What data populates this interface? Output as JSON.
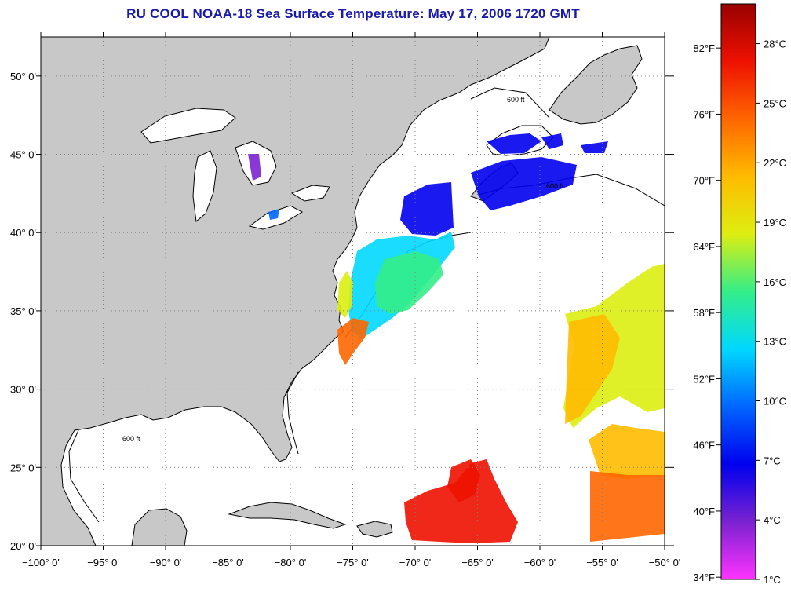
{
  "title": "RU COOL  NOAA-18  Sea Surface Temperature:  May 17, 2006 1720 GMT",
  "map": {
    "type": "sea-surface-temperature-map",
    "lon_range": [
      -100,
      -50
    ],
    "lat_range": [
      20,
      52.5
    ],
    "lon_ticks": [
      {
        "value": -100,
        "label": "−100° 0'"
      },
      {
        "value": -95,
        "label": "−95° 0'"
      },
      {
        "value": -90,
        "label": "−90° 0'"
      },
      {
        "value": -85,
        "label": "−85° 0'"
      },
      {
        "value": -80,
        "label": "−80° 0'"
      },
      {
        "value": -75,
        "label": "−75° 0'"
      },
      {
        "value": -70,
        "label": "−70° 0'"
      },
      {
        "value": -65,
        "label": "−65° 0'"
      },
      {
        "value": -60,
        "label": "−60° 0'"
      },
      {
        "value": -55,
        "label": "−55° 0'"
      },
      {
        "value": -50,
        "label": "−50° 0'"
      }
    ],
    "lat_ticks": [
      {
        "value": 20,
        "label": "20° 0'"
      },
      {
        "value": 25,
        "label": "25° 0'"
      },
      {
        "value": 30,
        "label": "30° 0'"
      },
      {
        "value": 35,
        "label": "35° 0'"
      },
      {
        "value": 40,
        "label": "40° 0'"
      },
      {
        "value": 45,
        "label": "45° 0'"
      },
      {
        "value": 50,
        "label": "50° 0'"
      }
    ],
    "grid": "dotted",
    "land_color": "#c8c8c8",
    "water_color": "#ffffff",
    "contour_label": "600 ft"
  },
  "colorbar": {
    "range_c": [
      1,
      30
    ],
    "celsius_ticks": [
      {
        "value": 1,
        "label": "1°C"
      },
      {
        "value": 4,
        "label": "4°C"
      },
      {
        "value": 7,
        "label": "7°C"
      },
      {
        "value": 10,
        "label": "10°C"
      },
      {
        "value": 13,
        "label": "13°C"
      },
      {
        "value": 16,
        "label": "16°C"
      },
      {
        "value": 19,
        "label": "19°C"
      },
      {
        "value": 22,
        "label": "22°C"
      },
      {
        "value": 25,
        "label": "25°C"
      },
      {
        "value": 28,
        "label": "28°C"
      }
    ],
    "fahrenheit_ticks": [
      {
        "value": 34,
        "label": "34°F"
      },
      {
        "value": 40,
        "label": "40°F"
      },
      {
        "value": 46,
        "label": "46°F"
      },
      {
        "value": 52,
        "label": "52°F"
      },
      {
        "value": 58,
        "label": "58°F"
      },
      {
        "value": 64,
        "label": "64°F"
      },
      {
        "value": 70,
        "label": "70°F"
      },
      {
        "value": 76,
        "label": "76°F"
      },
      {
        "value": 82,
        "label": "82°F"
      }
    ],
    "colors": [
      "#ff33ff",
      "#7a22d0",
      "#0000ee",
      "#0066ff",
      "#00d8ff",
      "#33ee88",
      "#ddee11",
      "#ffbb00",
      "#ff6600",
      "#ee1100",
      "#990000"
    ]
  }
}
